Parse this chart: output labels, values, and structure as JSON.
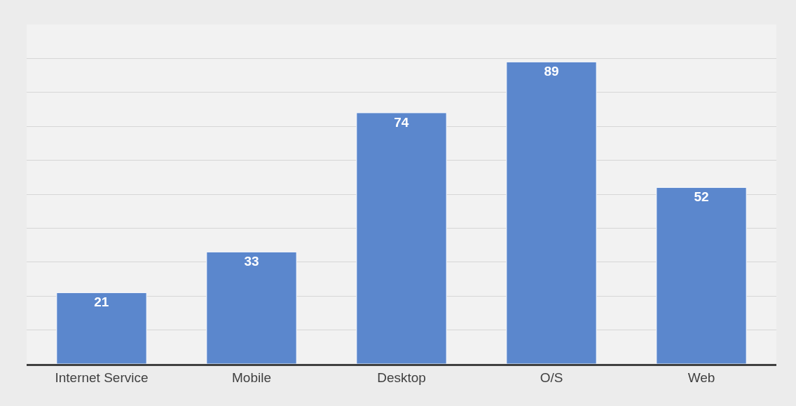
{
  "chart_data": {
    "type": "bar",
    "categories": [
      "Internet Service",
      "Mobile",
      "Desktop",
      "O/S",
      "Web"
    ],
    "values": [
      21,
      33,
      74,
      89,
      52
    ],
    "color": "#5b87cd",
    "ylim": [
      0,
      100
    ],
    "yticks": [
      {
        "value": 0,
        "label": null
      },
      {
        "value": 10,
        "label": null
      },
      {
        "value": 20,
        "label": null
      },
      {
        "value": 30,
        "label": null
      },
      {
        "value": 40,
        "label": null
      },
      {
        "value": 50,
        "label": null
      },
      {
        "value": 60,
        "label": null
      },
      {
        "value": 70,
        "label": null
      },
      {
        "value": 80,
        "label": null
      },
      {
        "value": 90,
        "label": null
      },
      {
        "value": 100,
        "label": null
      }
    ],
    "grid": "y",
    "tick_labels": "x",
    "data_labels": true
  }
}
